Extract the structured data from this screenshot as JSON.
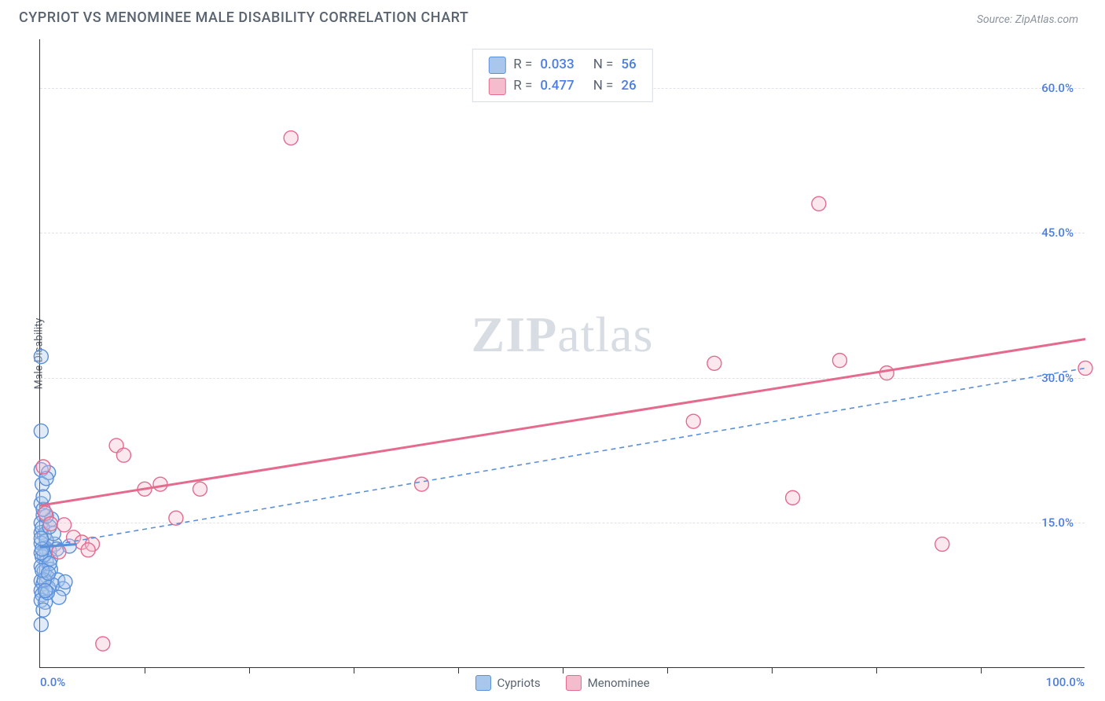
{
  "title": "CYPRIOT VS MENOMINEE MALE DISABILITY CORRELATION CHART",
  "source": "Source: ZipAtlas.com",
  "watermark": {
    "zip": "ZIP",
    "atlas": "atlas"
  },
  "y_axis_label": "Male Disability",
  "chart": {
    "type": "scatter",
    "xlim": [
      0,
      100
    ],
    "ylim": [
      0,
      65
    ],
    "x_ticks_minor": [
      10,
      20,
      30,
      40,
      50,
      60,
      70,
      80,
      90
    ],
    "x_labels": {
      "min": "0.0%",
      "max": "100.0%"
    },
    "y_grid": [
      {
        "value": 15,
        "label": "15.0%"
      },
      {
        "value": 30,
        "label": "30.0%"
      },
      {
        "value": 45,
        "label": "45.0%"
      },
      {
        "value": 60,
        "label": "60.0%"
      }
    ],
    "background_color": "#ffffff",
    "grid_color": "#dfe3e8",
    "axis_color": "#333333",
    "marker_radius": 9,
    "marker_stroke_width": 1.4,
    "marker_fill_opacity": 0.35,
    "series": [
      {
        "key": "cypriots",
        "label": "Cypriots",
        "color_stroke": "#5a8fd9",
        "color_fill": "#a9c7ec",
        "stats": {
          "R": "0.033",
          "N": "56"
        },
        "trend": {
          "x1": 0,
          "y1": 12.5,
          "x2": 3.5,
          "y2": 12.8,
          "width": 3,
          "dash": ""
        },
        "avg_trend": {
          "x1": 0,
          "y1": 12.5,
          "x2": 100,
          "y2": 31,
          "width": 1.6,
          "dash": "6,5"
        },
        "points": [
          [
            0.1,
            32.2
          ],
          [
            0.1,
            24.5
          ],
          [
            0.1,
            20.5
          ],
          [
            0.8,
            20.2
          ],
          [
            0.2,
            19.0
          ],
          [
            0.6,
            19.6
          ],
          [
            0.1,
            17.0
          ],
          [
            0.3,
            15.8
          ],
          [
            0.1,
            15.0
          ],
          [
            1.1,
            15.4
          ],
          [
            0.1,
            14.0
          ],
          [
            0.4,
            13.8
          ],
          [
            1.4,
            12.8
          ],
          [
            0.1,
            12.9
          ],
          [
            0.5,
            12.4
          ],
          [
            0.9,
            12.1
          ],
          [
            0.2,
            11.5
          ],
          [
            0.6,
            11.0
          ],
          [
            1.6,
            12.3
          ],
          [
            2.8,
            12.6
          ],
          [
            0.1,
            10.5
          ],
          [
            0.4,
            10.0
          ],
          [
            1.0,
            10.2
          ],
          [
            0.7,
            9.4
          ],
          [
            0.1,
            9.0
          ],
          [
            0.3,
            8.7
          ],
          [
            1.7,
            9.1
          ],
          [
            0.1,
            8.0
          ],
          [
            0.8,
            8.3
          ],
          [
            0.2,
            7.6
          ],
          [
            1.2,
            8.6
          ],
          [
            2.2,
            8.2
          ],
          [
            2.4,
            8.9
          ],
          [
            0.1,
            7.0
          ],
          [
            0.5,
            6.8
          ],
          [
            0.3,
            6.0
          ],
          [
            1.8,
            7.3
          ],
          [
            1.0,
            11.3
          ],
          [
            0.6,
            13.2
          ],
          [
            0.2,
            14.5
          ],
          [
            0.4,
            11.7
          ],
          [
            0.9,
            10.8
          ],
          [
            1.3,
            13.9
          ],
          [
            0.1,
            4.5
          ],
          [
            0.7,
            7.8
          ],
          [
            0.4,
            9.1
          ],
          [
            0.2,
            10.1
          ],
          [
            0.9,
            14.6
          ],
          [
            0.6,
            15.7
          ],
          [
            0.3,
            16.4
          ],
          [
            0.1,
            11.9
          ],
          [
            0.5,
            8.0
          ],
          [
            0.2,
            12.3
          ],
          [
            0.8,
            9.8
          ],
          [
            0.3,
            17.7
          ],
          [
            0.1,
            13.4
          ]
        ]
      },
      {
        "key": "menominee",
        "label": "Menominee",
        "color_stroke": "#e46a8e",
        "color_fill": "#f4bccd",
        "stats": {
          "R": "0.477",
          "N": "26"
        },
        "trend": {
          "x1": 0,
          "y1": 16.8,
          "x2": 100,
          "y2": 34,
          "width": 3,
          "dash": ""
        },
        "points": [
          [
            0.3,
            20.8
          ],
          [
            0.5,
            16.0
          ],
          [
            1.0,
            14.9
          ],
          [
            2.3,
            14.8
          ],
          [
            1.8,
            12.0
          ],
          [
            3.2,
            13.5
          ],
          [
            4.0,
            13.0
          ],
          [
            5.0,
            12.8
          ],
          [
            4.6,
            12.2
          ],
          [
            6.0,
            2.5
          ],
          [
            7.3,
            23.0
          ],
          [
            8.0,
            22.0
          ],
          [
            10.0,
            18.5
          ],
          [
            11.5,
            19.0
          ],
          [
            13.0,
            15.5
          ],
          [
            15.3,
            18.5
          ],
          [
            24.0,
            54.8
          ],
          [
            36.5,
            19.0
          ],
          [
            62.5,
            25.5
          ],
          [
            64.5,
            31.5
          ],
          [
            72.0,
            17.6
          ],
          [
            74.5,
            48.0
          ],
          [
            76.5,
            31.8
          ],
          [
            81.0,
            30.5
          ],
          [
            86.3,
            12.8
          ],
          [
            100.0,
            31.0
          ]
        ]
      }
    ]
  },
  "legend_top": {
    "rows": [
      {
        "swatch_stroke": "#5a8fd9",
        "swatch_fill": "#a9c7ec",
        "r_label": "R =",
        "r": "0.033",
        "n_label": "N =",
        "n": "56"
      },
      {
        "swatch_stroke": "#e46a8e",
        "swatch_fill": "#f4bccd",
        "r_label": "R =",
        "r": "0.477",
        "n_label": "N =",
        "n": "26"
      }
    ]
  },
  "legend_bottom": [
    {
      "swatch_stroke": "#5a8fd9",
      "swatch_fill": "#a9c7ec",
      "label": "Cypriots"
    },
    {
      "swatch_stroke": "#e46a8e",
      "swatch_fill": "#f4bccd",
      "label": "Menominee"
    }
  ]
}
